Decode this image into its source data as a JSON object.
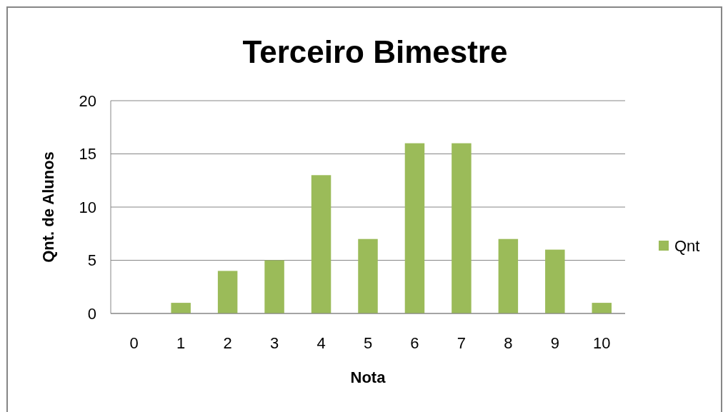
{
  "chart_data": {
    "type": "bar",
    "title": "Terceiro Bimestre",
    "xlabel": "Nota",
    "ylabel": "Qnt. de Alunos",
    "categories": [
      "0",
      "1",
      "2",
      "3",
      "4",
      "5",
      "6",
      "7",
      "8",
      "9",
      "10"
    ],
    "series": [
      {
        "name": "Qnt",
        "color": "#9bbb59",
        "values": [
          0,
          1,
          4,
          5,
          13,
          7,
          16,
          16,
          7,
          6,
          1
        ]
      }
    ],
    "ylim": [
      0,
      20
    ],
    "yticks": [
      0,
      5,
      10,
      15,
      20
    ],
    "grid": "y",
    "legend": "right"
  }
}
